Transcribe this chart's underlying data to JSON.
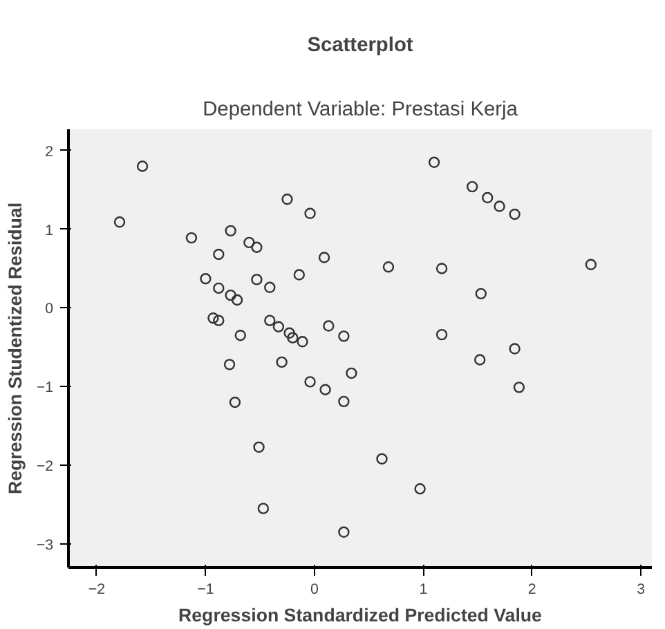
{
  "chart_data": {
    "type": "scatter",
    "title": "Scatterplot",
    "subtitle": "Dependent Variable: Prestasi Kerja",
    "xlabel": "Regression Standardized Predicted Value",
    "ylabel": "Regression Studentized Residual",
    "x": [
      -1.79,
      -1.58,
      -1.13,
      -0.77,
      -0.88,
      -0.6,
      -0.53,
      -0.25,
      -0.04,
      0.09,
      -0.14,
      -0.53,
      -0.41,
      -1.0,
      -0.88,
      -0.77,
      -0.71,
      -0.93,
      -0.88,
      -0.68,
      -0.41,
      -0.33,
      -0.23,
      -0.2,
      -0.11,
      0.13,
      0.27,
      1.1,
      1.45,
      1.59,
      1.7,
      1.84,
      0.68,
      1.17,
      2.54,
      1.53,
      1.17,
      1.84,
      1.52,
      -0.78,
      -0.3,
      0.34,
      -0.04,
      0.1,
      0.27,
      -0.73,
      -0.51,
      -0.47,
      0.27,
      1.88,
      0.62,
      0.97
    ],
    "values": [
      1.09,
      1.8,
      0.89,
      0.98,
      0.68,
      0.83,
      0.77,
      1.38,
      1.2,
      0.64,
      0.42,
      0.36,
      0.26,
      0.37,
      0.25,
      0.16,
      0.1,
      -0.13,
      -0.16,
      -0.35,
      -0.16,
      -0.24,
      -0.32,
      -0.38,
      -0.43,
      -0.23,
      -0.36,
      1.85,
      1.54,
      1.4,
      1.29,
      1.19,
      0.52,
      0.5,
      0.55,
      0.18,
      -0.34,
      -0.52,
      -0.66,
      -0.72,
      -0.69,
      -0.83,
      -0.94,
      -1.04,
      -1.19,
      -1.2,
      -1.77,
      -2.55,
      -2.85,
      -1.01,
      -1.92,
      -2.3
    ],
    "color": "#333333",
    "marker": "circle",
    "grid": false,
    "xlim": [
      -2.26,
      3.1
    ],
    "ylim": [
      -3.3,
      2.27
    ],
    "xticks": [
      -2,
      -1,
      0,
      1,
      2,
      3
    ],
    "yticks": [
      -3,
      -2,
      -1,
      0,
      1,
      2
    ]
  }
}
